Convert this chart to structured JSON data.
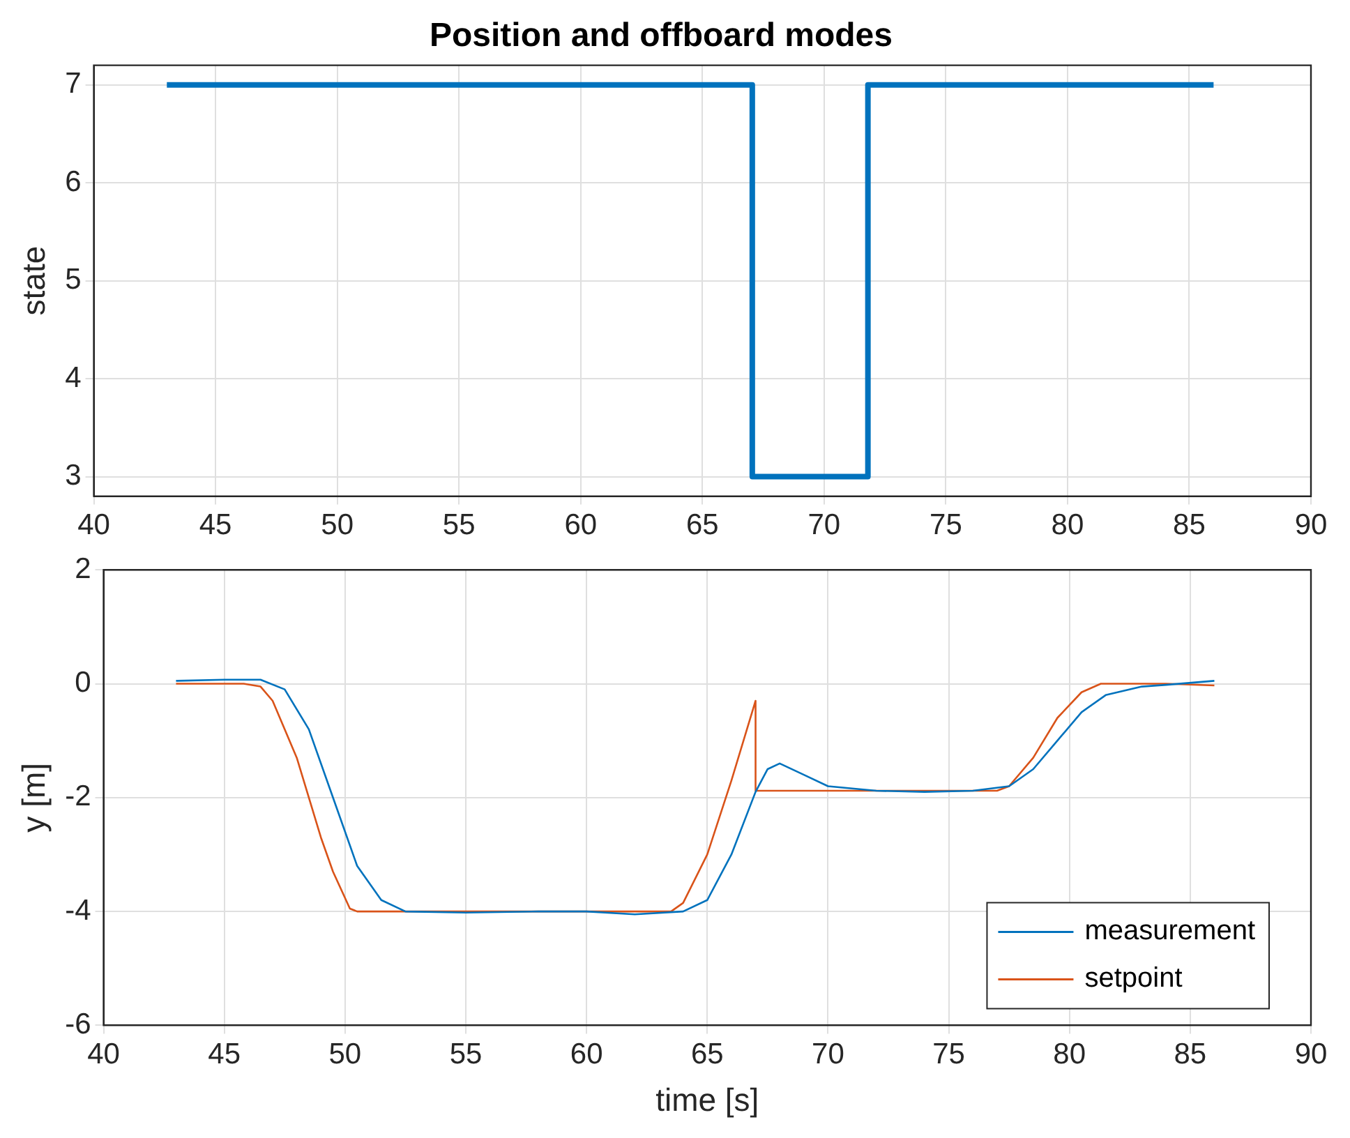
{
  "chart_data": [
    {
      "type": "step",
      "title": "Position and offboard modes",
      "ylabel": "state",
      "grid": true,
      "marker": "none",
      "xlim": [
        40,
        90
      ],
      "xticks": [
        40,
        45,
        50,
        55,
        60,
        65,
        70,
        75,
        80,
        85,
        90
      ],
      "ylim": [
        2.8,
        7.2
      ],
      "yticks": [
        3,
        4,
        5,
        6,
        7
      ],
      "series": [
        {
          "color": "#0072bd",
          "x": [
            43,
            67.05,
            71.8,
            86
          ],
          "values": [
            7,
            3,
            7,
            7
          ]
        }
      ]
    },
    {
      "type": "line",
      "xlabel": "time [s]",
      "ylabel": "y [m]",
      "grid": true,
      "marker": "none",
      "legend": "bottom right",
      "xlim": [
        40,
        90
      ],
      "xticks": [
        40,
        45,
        50,
        55,
        60,
        65,
        70,
        75,
        80,
        85,
        90
      ],
      "ylim": [
        -6,
        2
      ],
      "yticks": [
        -6,
        -4,
        -2,
        0,
        2
      ],
      "series": [
        {
          "name": "measurement",
          "color": "#0072bd",
          "x": [
            43,
            45,
            46.5,
            47.5,
            48.5,
            49.5,
            50.5,
            51.5,
            52.5,
            55,
            58,
            60,
            62,
            64,
            65,
            66,
            67,
            67.5,
            68,
            69,
            70,
            72,
            74,
            76,
            77.5,
            78.5,
            79.5,
            80.5,
            81.5,
            83,
            84,
            86
          ],
          "values": [
            0.05,
            0.07,
            0.07,
            -0.1,
            -0.8,
            -2,
            -3.2,
            -3.8,
            -4,
            -4.02,
            -4,
            -4,
            -4.05,
            -4,
            -3.8,
            -3,
            -1.9,
            -1.5,
            -1.4,
            -1.6,
            -1.8,
            -1.88,
            -1.9,
            -1.88,
            -1.8,
            -1.5,
            -1,
            -0.5,
            -0.2,
            -0.05,
            -0.02,
            0.05
          ]
        },
        {
          "name": "setpoint",
          "color": "#d95319",
          "x": [
            43,
            45.8,
            46.5,
            47,
            48,
            49,
            49.5,
            50.2,
            50.5,
            63.5,
            64,
            65,
            66,
            67,
            67,
            77,
            77.5,
            78.5,
            79.5,
            80.5,
            81.3,
            84,
            86
          ],
          "values": [
            0,
            0,
            -0.05,
            -0.3,
            -1.3,
            -2.7,
            -3.3,
            -3.95,
            -4,
            -4,
            -3.85,
            -3,
            -1.7,
            -0.3,
            -1.88,
            -1.88,
            -1.8,
            -1.3,
            -0.6,
            -0.15,
            0,
            0,
            -0.03
          ]
        }
      ]
    }
  ]
}
